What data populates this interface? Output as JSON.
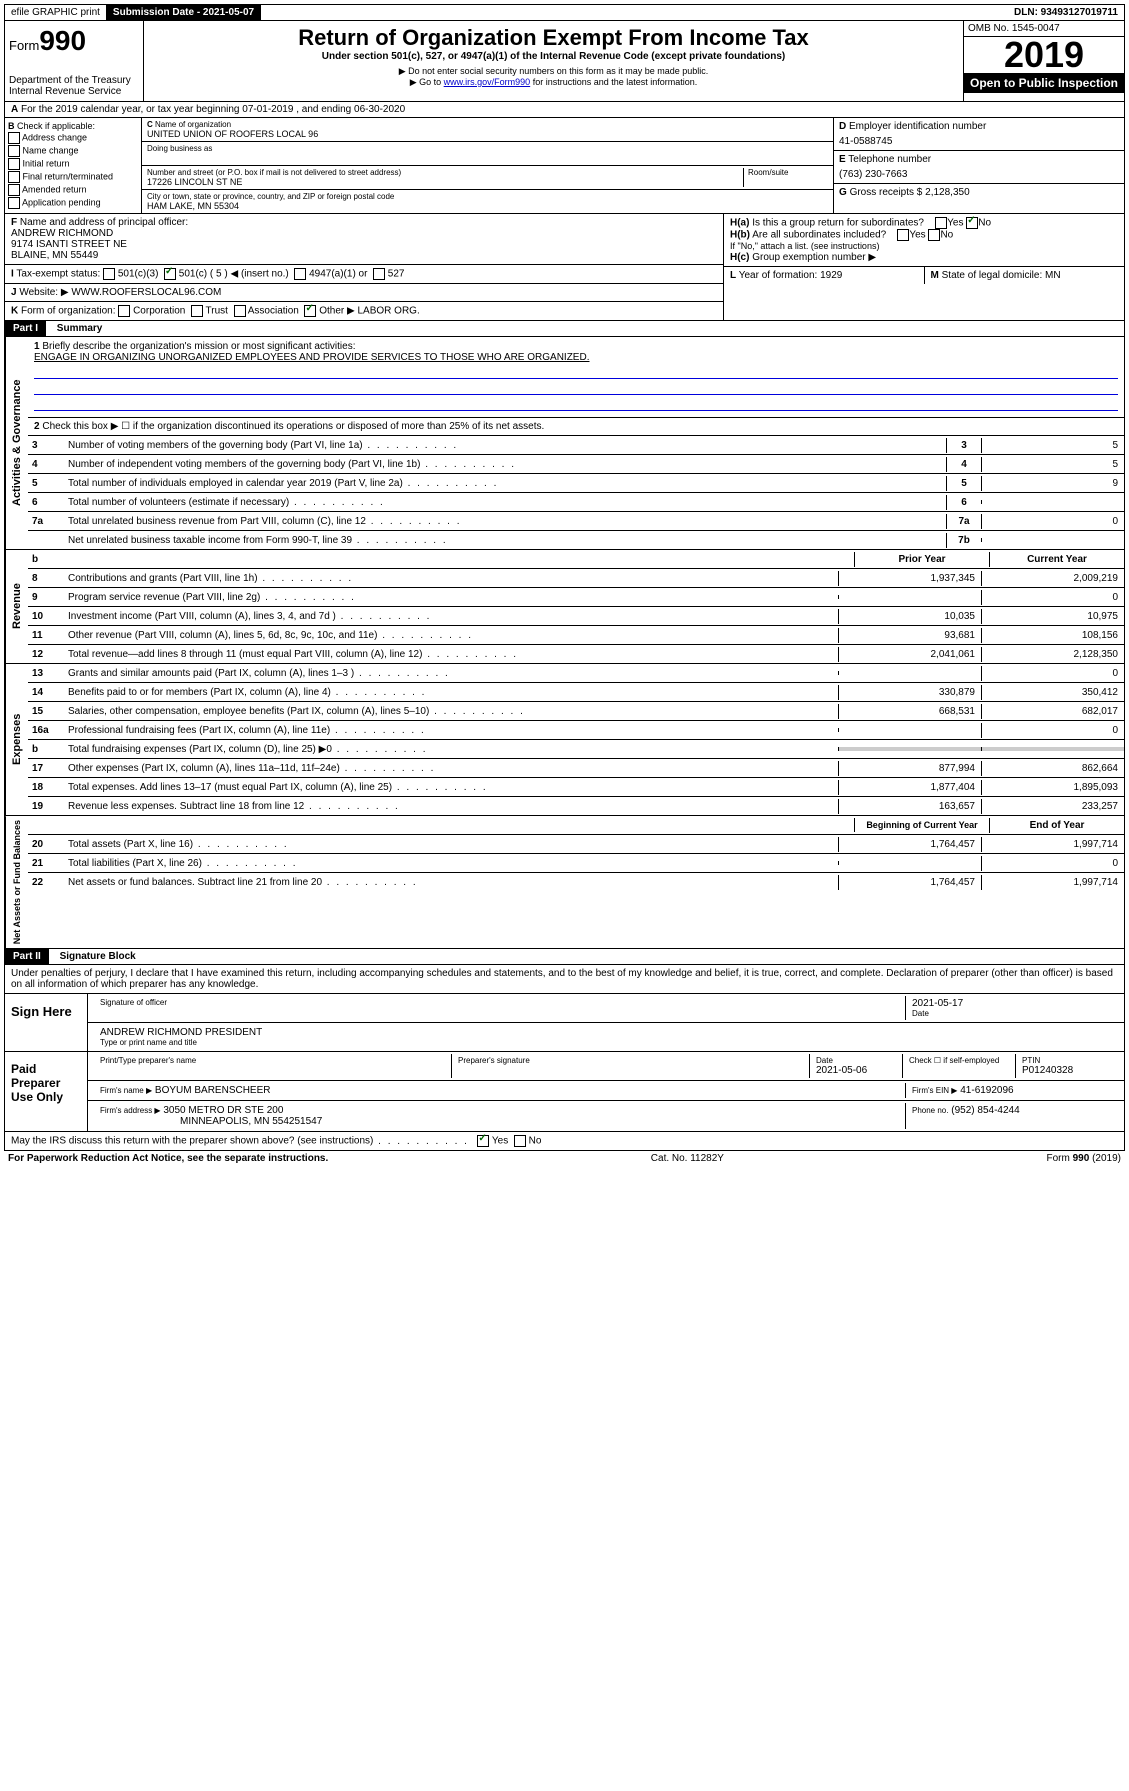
{
  "topbar": {
    "efile": "efile GRAPHIC print",
    "submission_label": "Submission Date - 2021-05-07",
    "dln": "DLN: 93493127019711"
  },
  "header": {
    "form_prefix": "Form",
    "form_number": "990",
    "dept": "Department of the Treasury",
    "irs": "Internal Revenue Service",
    "title": "Return of Organization Exempt From Income Tax",
    "subtitle": "Under section 501(c), 527, or 4947(a)(1) of the Internal Revenue Code (except private foundations)",
    "note1": "Do not enter social security numbers on this form as it may be made public.",
    "note2_prefix": "Go to ",
    "note2_link": "www.irs.gov/Form990",
    "note2_suffix": " for instructions and the latest information.",
    "omb": "OMB No. 1545-0047",
    "year": "2019",
    "open": "Open to Public Inspection"
  },
  "line_a": "For the 2019 calendar year, or tax year beginning 07-01-2019    , and ending 06-30-2020",
  "section_b": {
    "label": "Check if applicable:",
    "opts": [
      "Address change",
      "Name change",
      "Initial return",
      "Final return/terminated",
      "Amended return",
      "Application pending"
    ]
  },
  "section_c": {
    "name_label": "Name of organization",
    "name": "UNITED UNION OF ROOFERS LOCAL 96",
    "dba_label": "Doing business as",
    "street_label": "Number and street (or P.O. box if mail is not delivered to street address)",
    "room_label": "Room/suite",
    "street": "17226 LINCOLN ST NE",
    "city_label": "City or town, state or province, country, and ZIP or foreign postal code",
    "city": "HAM LAKE, MN  55304"
  },
  "section_d": {
    "label": "Employer identification number",
    "value": "41-0588745"
  },
  "section_e": {
    "label": "Telephone number",
    "value": "(763) 230-7663"
  },
  "section_g": {
    "label": "Gross receipts $",
    "value": "2,128,350"
  },
  "section_f": {
    "label": "Name and address of principal officer:",
    "line1": "ANDREW RICHMOND",
    "line2": "9174 ISANTI STREET NE",
    "line3": "BLAINE, MN  55449"
  },
  "section_h": {
    "a": "Is this a group return for subordinates?",
    "b": "Are all subordinates included?",
    "b_note": "If \"No,\" attach a list. (see instructions)",
    "c": "Group exemption number ▶"
  },
  "tax_exempt": {
    "label": "Tax-exempt status:",
    "opt1": "501(c)(3)",
    "opt2": "501(c) ( 5 ) ◀ (insert no.)",
    "opt3": "4947(a)(1) or",
    "opt4": "527"
  },
  "website": {
    "label": "Website: ▶",
    "value": "WWW.ROOFERSLOCAL96.COM"
  },
  "section_k": {
    "label": "Form of organization:",
    "opts": [
      "Corporation",
      "Trust",
      "Association",
      "Other ▶"
    ],
    "other_val": "LABOR ORG."
  },
  "section_l": {
    "label": "Year of formation:",
    "value": "1929"
  },
  "section_m": {
    "label": "State of legal domicile:",
    "value": "MN"
  },
  "part1": {
    "label": "Part I",
    "title": "Summary"
  },
  "governance": {
    "vert": "Activities & Governance",
    "l1_label": "Briefly describe the organization's mission or most significant activities:",
    "l1_text": "ENGAGE IN ORGANIZING UNORGANIZED EMPLOYEES AND PROVIDE SERVICES TO THOSE WHO ARE ORGANIZED.",
    "l2": "Check this box ▶ ☐ if the organization discontinued its operations or disposed of more than 25% of its net assets.",
    "lines": [
      {
        "n": "3",
        "d": "Number of voting members of the governing body (Part VI, line 1a)",
        "box": "3",
        "v": "5"
      },
      {
        "n": "4",
        "d": "Number of independent voting members of the governing body (Part VI, line 1b)",
        "box": "4",
        "v": "5"
      },
      {
        "n": "5",
        "d": "Total number of individuals employed in calendar year 2019 (Part V, line 2a)",
        "box": "5",
        "v": "9"
      },
      {
        "n": "6",
        "d": "Total number of volunteers (estimate if necessary)",
        "box": "6",
        "v": ""
      },
      {
        "n": "7a",
        "d": "Total unrelated business revenue from Part VIII, column (C), line 12",
        "box": "7a",
        "v": "0"
      },
      {
        "n": "",
        "d": "Net unrelated business taxable income from Form 990-T, line 39",
        "box": "7b",
        "v": ""
      }
    ]
  },
  "revenue": {
    "vert": "Revenue",
    "head_b": "b",
    "head_prior": "Prior Year",
    "head_curr": "Current Year",
    "lines": [
      {
        "n": "8",
        "d": "Contributions and grants (Part VIII, line 1h)",
        "p": "1,937,345",
        "c": "2,009,219"
      },
      {
        "n": "9",
        "d": "Program service revenue (Part VIII, line 2g)",
        "p": "",
        "c": "0"
      },
      {
        "n": "10",
        "d": "Investment income (Part VIII, column (A), lines 3, 4, and 7d )",
        "p": "10,035",
        "c": "10,975"
      },
      {
        "n": "11",
        "d": "Other revenue (Part VIII, column (A), lines 5, 6d, 8c, 9c, 10c, and 11e)",
        "p": "93,681",
        "c": "108,156"
      },
      {
        "n": "12",
        "d": "Total revenue—add lines 8 through 11 (must equal Part VIII, column (A), line 12)",
        "p": "2,041,061",
        "c": "2,128,350"
      }
    ]
  },
  "expenses": {
    "vert": "Expenses",
    "lines": [
      {
        "n": "13",
        "d": "Grants and similar amounts paid (Part IX, column (A), lines 1–3 )",
        "p": "",
        "c": "0"
      },
      {
        "n": "14",
        "d": "Benefits paid to or for members (Part IX, column (A), line 4)",
        "p": "330,879",
        "c": "350,412"
      },
      {
        "n": "15",
        "d": "Salaries, other compensation, employee benefits (Part IX, column (A), lines 5–10)",
        "p": "668,531",
        "c": "682,017"
      },
      {
        "n": "16a",
        "d": "Professional fundraising fees (Part IX, column (A), line 11e)",
        "p": "",
        "c": "0"
      },
      {
        "n": "b",
        "d": "Total fundraising expenses (Part IX, column (D), line 25) ▶0",
        "p": "gray",
        "c": "gray"
      },
      {
        "n": "17",
        "d": "Other expenses (Part IX, column (A), lines 11a–11d, 11f–24e)",
        "p": "877,994",
        "c": "862,664"
      },
      {
        "n": "18",
        "d": "Total expenses. Add lines 13–17 (must equal Part IX, column (A), line 25)",
        "p": "1,877,404",
        "c": "1,895,093"
      },
      {
        "n": "19",
        "d": "Revenue less expenses. Subtract line 18 from line 12",
        "p": "163,657",
        "c": "233,257"
      }
    ]
  },
  "netassets": {
    "vert": "Net Assets or Fund Balances",
    "head_begin": "Beginning of Current Year",
    "head_end": "End of Year",
    "lines": [
      {
        "n": "20",
        "d": "Total assets (Part X, line 16)",
        "p": "1,764,457",
        "c": "1,997,714"
      },
      {
        "n": "21",
        "d": "Total liabilities (Part X, line 26)",
        "p": "",
        "c": "0"
      },
      {
        "n": "22",
        "d": "Net assets or fund balances. Subtract line 21 from line 20",
        "p": "1,764,457",
        "c": "1,997,714"
      }
    ]
  },
  "part2": {
    "label": "Part II",
    "title": "Signature Block",
    "intro": "Under penalties of perjury, I declare that I have examined this return, including accompanying schedules and statements, and to the best of my knowledge and belief, it is true, correct, and complete. Declaration of preparer (other than officer) is based on all information of which preparer has any knowledge."
  },
  "sign": {
    "here": "Sign Here",
    "sig_label": "Signature of officer",
    "date": "2021-05-17",
    "date_label": "Date",
    "name": "ANDREW RICHMOND  PRESIDENT",
    "name_label": "Type or print name and title"
  },
  "preparer": {
    "label": "Paid Preparer Use Only",
    "print_label": "Print/Type preparer's name",
    "sig_label": "Preparer's signature",
    "date_label": "Date",
    "date": "2021-05-06",
    "check_label": "Check ☐ if self-employed",
    "ptin_label": "PTIN",
    "ptin": "P01240328",
    "firm_name_label": "Firm's name    ▶",
    "firm_name": "BOYUM BARENSCHEER",
    "firm_ein_label": "Firm's EIN ▶",
    "firm_ein": "41-6192096",
    "firm_addr_label": "Firm's address ▶",
    "firm_addr1": "3050 METRO DR STE 200",
    "firm_addr2": "MINNEAPOLIS, MN  554251547",
    "phone_label": "Phone no.",
    "phone": "(952) 854-4244"
  },
  "discuss": {
    "text": "May the IRS discuss this return with the preparer shown above? (see instructions)",
    "yes": "Yes",
    "no": "No"
  },
  "footer": {
    "left": "For Paperwork Reduction Act Notice, see the separate instructions.",
    "mid": "Cat. No. 11282Y",
    "right": "Form 990 (2019)"
  }
}
